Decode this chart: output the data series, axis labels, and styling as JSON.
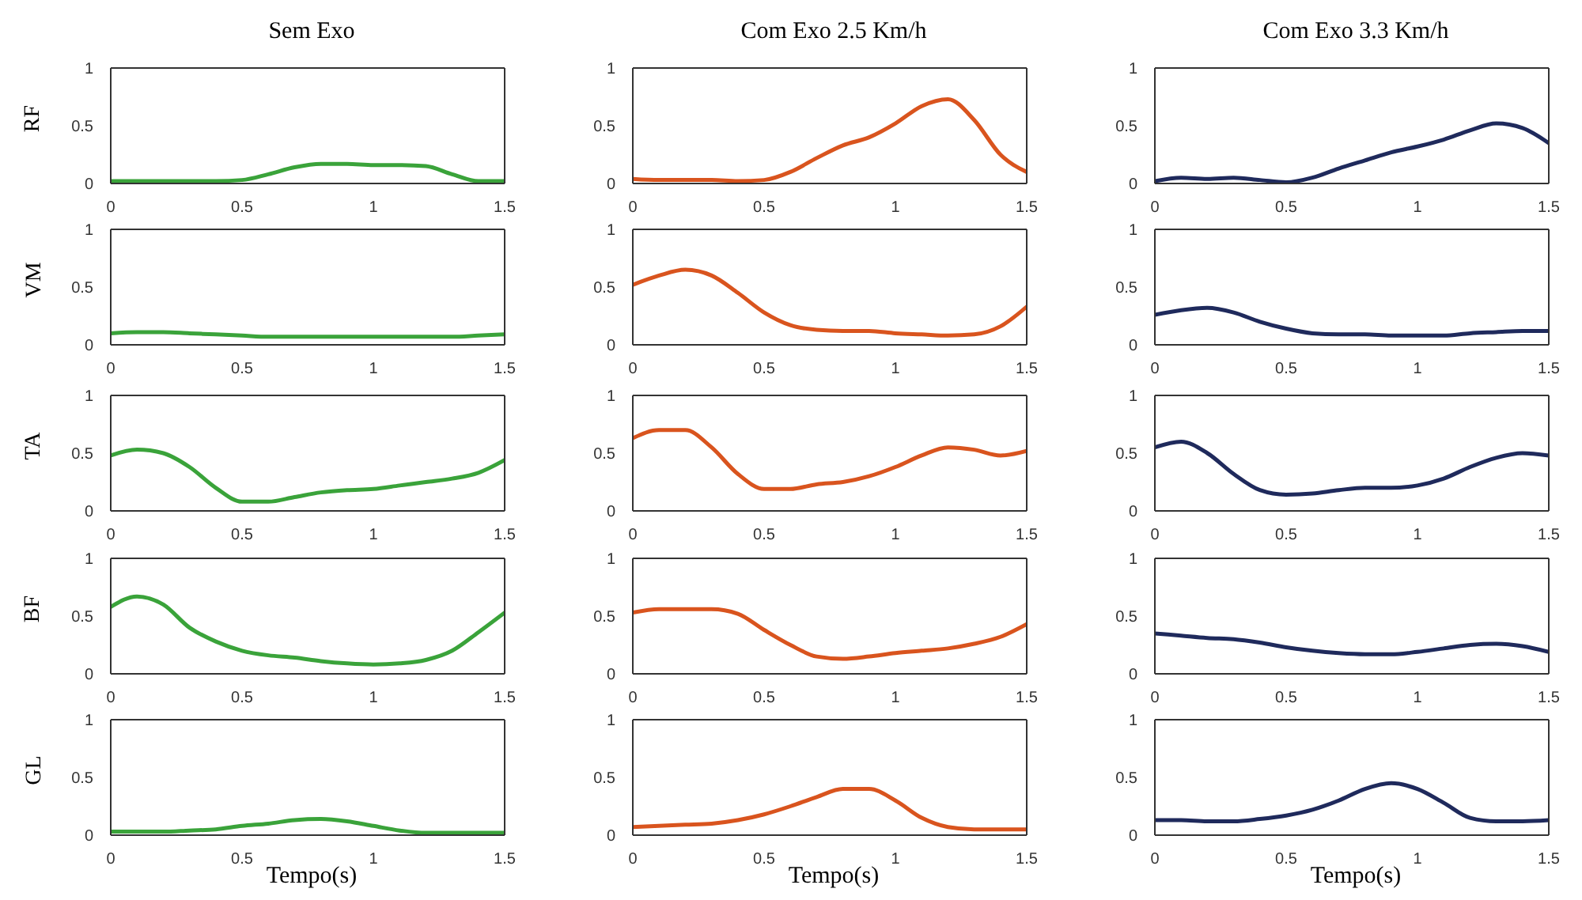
{
  "chart_data": [
    {
      "type": "line",
      "title": "Sem Exo",
      "ylabel": "RF",
      "x": [
        0,
        0.1,
        0.2,
        0.3,
        0.4,
        0.5,
        0.6,
        0.7,
        0.8,
        0.9,
        1,
        1.1,
        1.2,
        1.3,
        1.4,
        1.5
      ],
      "series": [
        {
          "color": "#3aa33a",
          "values": [
            0.02,
            0.02,
            0.02,
            0.02,
            0.02,
            0.03,
            0.08,
            0.14,
            0.17,
            0.17,
            0.16,
            0.16,
            0.15,
            0.08,
            0.02,
            0.02
          ]
        }
      ],
      "xlim": [
        0,
        1.5
      ],
      "ylim": [
        0,
        1
      ],
      "xticks": [
        0,
        0.5,
        1,
        1.5
      ],
      "yticks": [
        0,
        0.5,
        1
      ]
    },
    {
      "type": "line",
      "title": "Com Exo 2.5 Km/h",
      "x": [
        0,
        0.1,
        0.2,
        0.3,
        0.4,
        0.5,
        0.6,
        0.7,
        0.8,
        0.9,
        1,
        1.1,
        1.2,
        1.3,
        1.4,
        1.5
      ],
      "series": [
        {
          "color": "#d9541e",
          "values": [
            0.04,
            0.03,
            0.03,
            0.03,
            0.02,
            0.03,
            0.1,
            0.22,
            0.33,
            0.4,
            0.52,
            0.67,
            0.73,
            0.55,
            0.25,
            0.1
          ]
        }
      ],
      "xlim": [
        0,
        1.5
      ],
      "ylim": [
        0,
        1
      ],
      "xticks": [
        0,
        0.5,
        1,
        1.5
      ],
      "yticks": [
        0,
        0.5,
        1
      ]
    },
    {
      "type": "line",
      "title": "Com Exo 3.3 Km/h",
      "x": [
        0,
        0.1,
        0.2,
        0.3,
        0.4,
        0.5,
        0.6,
        0.7,
        0.8,
        0.9,
        1,
        1.1,
        1.2,
        1.3,
        1.4,
        1.5
      ],
      "series": [
        {
          "color": "#1f2a5c",
          "values": [
            0.02,
            0.05,
            0.04,
            0.05,
            0.03,
            0.01,
            0.05,
            0.13,
            0.2,
            0.27,
            0.32,
            0.38,
            0.46,
            0.52,
            0.48,
            0.35
          ]
        }
      ],
      "xlim": [
        0,
        1.5
      ],
      "ylim": [
        0,
        1
      ],
      "xticks": [
        0,
        0.5,
        1,
        1.5
      ],
      "yticks": [
        0,
        0.5,
        1
      ]
    },
    {
      "type": "line",
      "ylabel": "VM",
      "x": [
        0,
        0.1,
        0.2,
        0.3,
        0.4,
        0.5,
        0.6,
        0.7,
        0.8,
        0.9,
        1,
        1.1,
        1.2,
        1.3,
        1.4,
        1.5
      ],
      "series": [
        {
          "color": "#3aa33a",
          "values": [
            0.1,
            0.11,
            0.11,
            0.1,
            0.09,
            0.08,
            0.07,
            0.07,
            0.07,
            0.07,
            0.07,
            0.07,
            0.07,
            0.07,
            0.08,
            0.09
          ]
        }
      ],
      "xlim": [
        0,
        1.5
      ],
      "ylim": [
        0,
        1
      ],
      "xticks": [
        0,
        0.5,
        1,
        1.5
      ],
      "yticks": [
        0,
        0.5,
        1
      ]
    },
    {
      "type": "line",
      "x": [
        0,
        0.1,
        0.2,
        0.3,
        0.4,
        0.5,
        0.6,
        0.7,
        0.8,
        0.9,
        1,
        1.1,
        1.2,
        1.3,
        1.4,
        1.5
      ],
      "series": [
        {
          "color": "#d9541e",
          "values": [
            0.52,
            0.6,
            0.65,
            0.6,
            0.45,
            0.28,
            0.17,
            0.13,
            0.12,
            0.12,
            0.1,
            0.09,
            0.08,
            0.09,
            0.16,
            0.33
          ]
        }
      ],
      "xlim": [
        0,
        1.5
      ],
      "ylim": [
        0,
        1
      ],
      "xticks": [
        0,
        0.5,
        1,
        1.5
      ],
      "yticks": [
        0,
        0.5,
        1
      ]
    },
    {
      "type": "line",
      "x": [
        0,
        0.1,
        0.2,
        0.3,
        0.4,
        0.5,
        0.6,
        0.7,
        0.8,
        0.9,
        1,
        1.1,
        1.2,
        1.3,
        1.4,
        1.5
      ],
      "series": [
        {
          "color": "#1f2a5c",
          "values": [
            0.26,
            0.3,
            0.32,
            0.28,
            0.2,
            0.14,
            0.1,
            0.09,
            0.09,
            0.08,
            0.08,
            0.08,
            0.1,
            0.11,
            0.12,
            0.12
          ]
        }
      ],
      "xlim": [
        0,
        1.5
      ],
      "ylim": [
        0,
        1
      ],
      "xticks": [
        0,
        0.5,
        1,
        1.5
      ],
      "yticks": [
        0,
        0.5,
        1
      ]
    },
    {
      "type": "line",
      "ylabel": "TA",
      "x": [
        0,
        0.1,
        0.2,
        0.3,
        0.4,
        0.5,
        0.6,
        0.7,
        0.8,
        0.9,
        1,
        1.1,
        1.2,
        1.3,
        1.4,
        1.5
      ],
      "series": [
        {
          "color": "#3aa33a",
          "values": [
            0.48,
            0.53,
            0.5,
            0.38,
            0.2,
            0.08,
            0.08,
            0.12,
            0.16,
            0.18,
            0.19,
            0.22,
            0.25,
            0.28,
            0.33,
            0.44
          ]
        }
      ],
      "xlim": [
        0,
        1.5
      ],
      "ylim": [
        0,
        1
      ],
      "xticks": [
        0,
        0.5,
        1,
        1.5
      ],
      "yticks": [
        0,
        0.5,
        1
      ]
    },
    {
      "type": "line",
      "x": [
        0,
        0.1,
        0.2,
        0.3,
        0.4,
        0.5,
        0.6,
        0.7,
        0.8,
        0.9,
        1,
        1.1,
        1.2,
        1.3,
        1.4,
        1.5
      ],
      "series": [
        {
          "color": "#d9541e",
          "values": [
            0.63,
            0.7,
            0.7,
            0.55,
            0.32,
            0.19,
            0.19,
            0.23,
            0.25,
            0.3,
            0.38,
            0.48,
            0.55,
            0.53,
            0.48,
            0.52
          ]
        }
      ],
      "xlim": [
        0,
        1.5
      ],
      "ylim": [
        0,
        1
      ],
      "xticks": [
        0,
        0.5,
        1,
        1.5
      ],
      "yticks": [
        0,
        0.5,
        1
      ]
    },
    {
      "type": "line",
      "x": [
        0,
        0.1,
        0.2,
        0.3,
        0.4,
        0.5,
        0.6,
        0.7,
        0.8,
        0.9,
        1,
        1.1,
        1.2,
        1.3,
        1.4,
        1.5
      ],
      "series": [
        {
          "color": "#1f2a5c",
          "values": [
            0.55,
            0.6,
            0.5,
            0.32,
            0.18,
            0.14,
            0.15,
            0.18,
            0.2,
            0.2,
            0.22,
            0.28,
            0.38,
            0.46,
            0.5,
            0.48
          ]
        }
      ],
      "xlim": [
        0,
        1.5
      ],
      "ylim": [
        0,
        1
      ],
      "xticks": [
        0,
        0.5,
        1,
        1.5
      ],
      "yticks": [
        0,
        0.5,
        1
      ]
    },
    {
      "type": "line",
      "ylabel": "BF",
      "x": [
        0,
        0.1,
        0.2,
        0.3,
        0.4,
        0.5,
        0.6,
        0.7,
        0.8,
        0.9,
        1,
        1.1,
        1.2,
        1.3,
        1.4,
        1.5
      ],
      "series": [
        {
          "color": "#3aa33a",
          "values": [
            0.58,
            0.67,
            0.6,
            0.4,
            0.28,
            0.2,
            0.16,
            0.14,
            0.11,
            0.09,
            0.08,
            0.09,
            0.12,
            0.2,
            0.36,
            0.53
          ]
        }
      ],
      "xlim": [
        0,
        1.5
      ],
      "ylim": [
        0,
        1
      ],
      "xticks": [
        0,
        0.5,
        1,
        1.5
      ],
      "yticks": [
        0,
        0.5,
        1
      ]
    },
    {
      "type": "line",
      "x": [
        0,
        0.1,
        0.2,
        0.3,
        0.4,
        0.5,
        0.6,
        0.7,
        0.8,
        0.9,
        1,
        1.1,
        1.2,
        1.3,
        1.4,
        1.5
      ],
      "series": [
        {
          "color": "#d9541e",
          "values": [
            0.53,
            0.56,
            0.56,
            0.56,
            0.52,
            0.38,
            0.25,
            0.15,
            0.13,
            0.15,
            0.18,
            0.2,
            0.22,
            0.26,
            0.32,
            0.43
          ]
        }
      ],
      "xlim": [
        0,
        1.5
      ],
      "ylim": [
        0,
        1
      ],
      "xticks": [
        0,
        0.5,
        1,
        1.5
      ],
      "yticks": [
        0,
        0.5,
        1
      ]
    },
    {
      "type": "line",
      "x": [
        0,
        0.1,
        0.2,
        0.3,
        0.4,
        0.5,
        0.6,
        0.7,
        0.8,
        0.9,
        1,
        1.1,
        1.2,
        1.3,
        1.4,
        1.5
      ],
      "series": [
        {
          "color": "#1f2a5c",
          "values": [
            0.35,
            0.33,
            0.31,
            0.3,
            0.27,
            0.23,
            0.2,
            0.18,
            0.17,
            0.17,
            0.19,
            0.22,
            0.25,
            0.26,
            0.24,
            0.19
          ]
        }
      ],
      "xlim": [
        0,
        1.5
      ],
      "ylim": [
        0,
        1
      ],
      "xticks": [
        0,
        0.5,
        1,
        1.5
      ],
      "yticks": [
        0,
        0.5,
        1
      ]
    },
    {
      "type": "line",
      "ylabel": "GL",
      "xlabel": "Tempo(s)",
      "x": [
        0,
        0.1,
        0.2,
        0.3,
        0.4,
        0.5,
        0.6,
        0.7,
        0.8,
        0.9,
        1,
        1.1,
        1.2,
        1.3,
        1.4,
        1.5
      ],
      "series": [
        {
          "color": "#3aa33a",
          "values": [
            0.03,
            0.03,
            0.03,
            0.04,
            0.05,
            0.08,
            0.1,
            0.13,
            0.14,
            0.12,
            0.08,
            0.04,
            0.02,
            0.02,
            0.02,
            0.02
          ]
        }
      ],
      "xlim": [
        0,
        1.5
      ],
      "ylim": [
        0,
        1
      ],
      "xticks": [
        0,
        0.5,
        1,
        1.5
      ],
      "yticks": [
        0,
        0.5,
        1
      ]
    },
    {
      "type": "line",
      "xlabel": "Tempo(s)",
      "x": [
        0,
        0.1,
        0.2,
        0.3,
        0.4,
        0.5,
        0.6,
        0.7,
        0.8,
        0.9,
        1,
        1.1,
        1.2,
        1.3,
        1.4,
        1.5
      ],
      "series": [
        {
          "color": "#d9541e",
          "values": [
            0.07,
            0.08,
            0.09,
            0.1,
            0.13,
            0.18,
            0.25,
            0.33,
            0.4,
            0.4,
            0.3,
            0.15,
            0.07,
            0.05,
            0.05,
            0.05
          ]
        }
      ],
      "xlim": [
        0,
        1.5
      ],
      "ylim": [
        0,
        1
      ],
      "xticks": [
        0,
        0.5,
        1,
        1.5
      ],
      "yticks": [
        0,
        0.5,
        1
      ]
    },
    {
      "type": "line",
      "xlabel": "Tempo(s)",
      "x": [
        0,
        0.1,
        0.2,
        0.3,
        0.4,
        0.5,
        0.6,
        0.7,
        0.8,
        0.9,
        1,
        1.1,
        1.2,
        1.3,
        1.4,
        1.5
      ],
      "series": [
        {
          "color": "#1f2a5c",
          "values": [
            0.13,
            0.13,
            0.12,
            0.12,
            0.14,
            0.17,
            0.22,
            0.3,
            0.4,
            0.45,
            0.4,
            0.28,
            0.15,
            0.12,
            0.12,
            0.13
          ]
        }
      ],
      "xlim": [
        0,
        1.5
      ],
      "ylim": [
        0,
        1
      ],
      "xticks": [
        0,
        0.5,
        1,
        1.5
      ],
      "yticks": [
        0,
        0.5,
        1
      ]
    }
  ]
}
